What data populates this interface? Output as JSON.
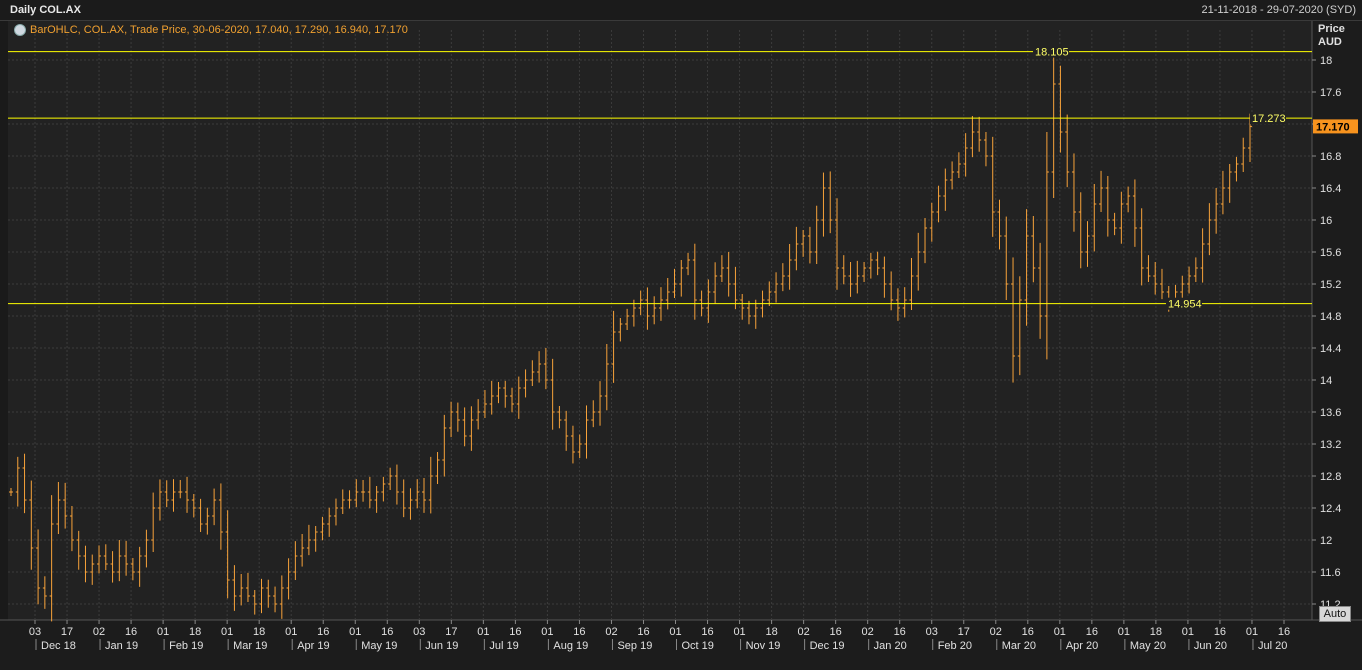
{
  "header": {
    "title": "Daily COL.AX",
    "date_range": "21-11-2018 - 29-07-2020 (SYD)",
    "legend": "BarOHLC, COL.AX, Trade Price, 30-06-2020, 17.040, 17.290, 16.940, 17.170",
    "price_label": "Price",
    "currency_label": "AUD",
    "auto_label": "Auto",
    "last_price_label": "17.170"
  },
  "colors": {
    "bars": "#f7a23a",
    "lines": "#ffff00",
    "last_price_bg": "#f7931e",
    "background": "#222222"
  },
  "chart_data": {
    "type": "ohlc",
    "title": "Daily COL.AX",
    "ylabel": "AUD",
    "ylim": [
      11.0,
      18.25
    ],
    "yticks": [
      11.2,
      11.6,
      12,
      12.4,
      12.8,
      13.2,
      13.6,
      14,
      14.4,
      14.8,
      15.2,
      15.6,
      16,
      16.4,
      16.8,
      17.2,
      17.6,
      18
    ],
    "ytick_labels": [
      "11.2",
      "11.6",
      "12",
      "12.4",
      "12.8",
      "13.2",
      "13.6",
      "14",
      "14.4",
      "14.8",
      "15.2",
      "15.6",
      "16",
      "16.4",
      "16.8",
      "17.2",
      "17.6",
      "18"
    ],
    "day_ticks": [
      "03",
      "17",
      "02",
      "16",
      "01",
      "18",
      "01",
      "18",
      "01",
      "16",
      "01",
      "16",
      "03",
      "17",
      "01",
      "16",
      "01",
      "16",
      "02",
      "16",
      "01",
      "16",
      "01",
      "18",
      "02",
      "16",
      "02",
      "16",
      "03",
      "17",
      "02",
      "16",
      "01",
      "16",
      "01",
      "18",
      "01",
      "16",
      "01",
      "16"
    ],
    "month_ticks": [
      "Dec 18",
      "Jan 19",
      "Feb 19",
      "Mar 19",
      "Apr 19",
      "May 19",
      "Jun 19",
      "Jul 19",
      "Aug 19",
      "Sep 19",
      "Oct 19",
      "Nov 19",
      "Dec 19",
      "Jan 20",
      "Feb 20",
      "Mar 20",
      "Apr 20",
      "May 20",
      "Jun 20",
      "Jul 20"
    ],
    "horizontal_lines": [
      {
        "value": 18.105,
        "label": "18.105"
      },
      {
        "value": 17.273,
        "label": "17.273"
      },
      {
        "value": 14.954,
        "label": "14.954"
      }
    ],
    "last_price": 17.17,
    "closes": [
      12.6,
      12.9,
      12.5,
      11.9,
      11.4,
      11.3,
      12.2,
      12.5,
      12.3,
      12.0,
      11.8,
      11.6,
      11.7,
      11.8,
      11.7,
      11.6,
      11.8,
      11.7,
      11.6,
      11.8,
      12.0,
      12.4,
      12.6,
      12.5,
      12.6,
      12.6,
      12.5,
      12.4,
      12.2,
      12.3,
      12.5,
      12.1,
      11.5,
      11.3,
      11.4,
      11.3,
      11.2,
      11.4,
      11.3,
      11.2,
      11.4,
      11.6,
      11.8,
      11.9,
      12.0,
      12.1,
      12.2,
      12.3,
      12.4,
      12.5,
      12.5,
      12.6,
      12.6,
      12.5,
      12.6,
      12.7,
      12.8,
      12.6,
      12.4,
      12.5,
      12.6,
      12.5,
      12.8,
      13.0,
      13.4,
      13.6,
      13.5,
      13.3,
      13.5,
      13.6,
      13.7,
      13.8,
      13.9,
      13.8,
      13.7,
      13.9,
      14.0,
      14.1,
      14.2,
      14.0,
      13.6,
      13.5,
      13.3,
      13.1,
      13.2,
      13.5,
      13.6,
      13.8,
      14.2,
      14.6,
      14.7,
      14.8,
      14.9,
      15.0,
      14.8,
      14.9,
      15.0,
      15.1,
      15.2,
      15.4,
      15.5,
      15.0,
      14.9,
      15.1,
      15.3,
      15.4,
      15.2,
      15.0,
      14.9,
      14.8,
      14.9,
      15.0,
      15.1,
      15.2,
      15.3,
      15.5,
      15.7,
      15.8,
      15.6,
      16.0,
      16.4,
      16.0,
      15.4,
      15.3,
      15.2,
      15.3,
      15.4,
      15.5,
      15.4,
      15.2,
      15.0,
      14.9,
      15.0,
      15.3,
      15.6,
      15.9,
      16.1,
      16.3,
      16.5,
      16.6,
      16.7,
      16.9,
      17.1,
      17.0,
      16.8,
      16.1,
      15.8,
      15.2,
      14.3,
      15.0,
      15.8,
      15.4,
      14.8,
      16.6,
      17.7,
      17.1,
      16.6,
      16.1,
      15.6,
      15.8,
      16.2,
      16.4,
      16.0,
      15.9,
      16.2,
      16.3,
      15.9,
      15.4,
      15.3,
      15.2,
      15.1,
      15.0,
      15.1,
      15.2,
      15.3,
      15.4,
      15.7,
      16.0,
      16.2,
      16.4,
      16.6,
      16.7,
      16.9,
      17.17
    ]
  }
}
